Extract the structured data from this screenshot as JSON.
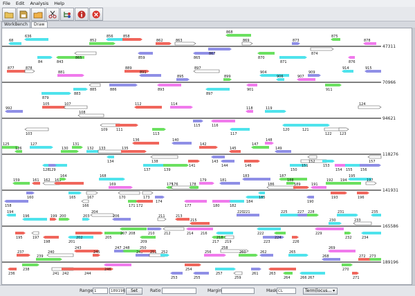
{
  "menu": {
    "file": "File",
    "edit": "Edit",
    "analysis": "Analysis",
    "help": "Help"
  },
  "tabs": {
    "workbench": "WorkBench",
    "draw": "Draw"
  },
  "toolbar_icons": [
    "open-folder-icon",
    "save-icon",
    "open-file-icon",
    "cut-icon",
    "tree-settings-icon",
    "info-icon",
    "close-circle-icon"
  ],
  "statusbar": {
    "range_label": "Range",
    "range_from": "1",
    "range_to": "189196",
    "set_label": "Set",
    "ratio_label": "Ratio",
    "margin_label": "Margin",
    "mask_label": "Mask",
    "mask_value": "CL",
    "term_label": "Term(locus..."
  },
  "tracks": [
    {
      "end": "47311",
      "labels": [
        "68",
        "636",
        "84",
        "843",
        "865",
        "852",
        "856",
        "858",
        "859",
        "862",
        "863",
        "865",
        "867",
        "868",
        "869",
        "870",
        "871",
        "873",
        "874",
        "875",
        "876",
        "878"
      ]
    },
    {
      "end": "70966",
      "labels": [
        "877",
        "878",
        "879",
        "881",
        "883",
        "885",
        "886",
        "889",
        "891",
        "893",
        "895",
        "897",
        "897",
        "899",
        "901",
        "904",
        "906",
        "907",
        "909",
        "911",
        "914",
        "915"
      ]
    },
    {
      "end": "94621",
      "labels": [
        "992",
        "103",
        "105",
        "107",
        "108",
        "109",
        "111",
        "112",
        "113",
        "114",
        "115",
        "116",
        "117",
        "118",
        "119",
        "120",
        "121",
        "122",
        "123",
        "124"
      ]
    },
    {
      "end": "118276",
      "labels": [
        "125",
        "126",
        "127",
        "128",
        "129",
        "130",
        "131",
        "132",
        "133",
        "134",
        "135",
        "136",
        "137",
        "138",
        "139",
        "140",
        "141",
        "142",
        "143",
        "144",
        "145",
        "146",
        "147",
        "148",
        "149",
        "150",
        "151",
        "152",
        "153",
        "154",
        "155",
        "156",
        "157"
      ]
    },
    {
      "end": "141931",
      "labels": [
        "158",
        "159",
        "160",
        "161",
        "162",
        "163",
        "164",
        "165",
        "166",
        "167",
        "168",
        "169",
        "170",
        "171",
        "172",
        "173",
        "174",
        "175",
        "176",
        "177",
        "178",
        "179",
        "180",
        "181",
        "182",
        "183",
        "184",
        "185",
        "186",
        "187",
        "188",
        "189",
        "190",
        "191",
        "192",
        "193",
        "194",
        "195",
        "196",
        "197"
      ]
    },
    {
      "end": "165586",
      "labels": [
        "194",
        "195",
        "196",
        "197",
        "198",
        "199",
        "200",
        "201",
        "202",
        "203",
        "204",
        "205",
        "206",
        "207",
        "208",
        "209",
        "210",
        "211",
        "212",
        "213",
        "214",
        "215",
        "216",
        "217",
        "218",
        "219",
        "220",
        "221",
        "222",
        "223",
        "224",
        "225",
        "226",
        "227",
        "228",
        "229",
        "230",
        "231",
        "232",
        "233",
        "234",
        "235"
      ]
    },
    {
      "end": "189196",
      "labels": [
        "236",
        "237",
        "238",
        "239",
        "240",
        "241",
        "242",
        "243",
        "244",
        "245",
        "246",
        "247",
        "248",
        "249",
        "250",
        "251",
        "252",
        "253",
        "254",
        "255",
        "256",
        "257",
        "258",
        "259",
        "260",
        "261",
        "262",
        "263",
        "264",
        "265",
        "266",
        "267",
        "268",
        "269",
        "270",
        "271",
        "272",
        "273"
      ]
    }
  ]
}
